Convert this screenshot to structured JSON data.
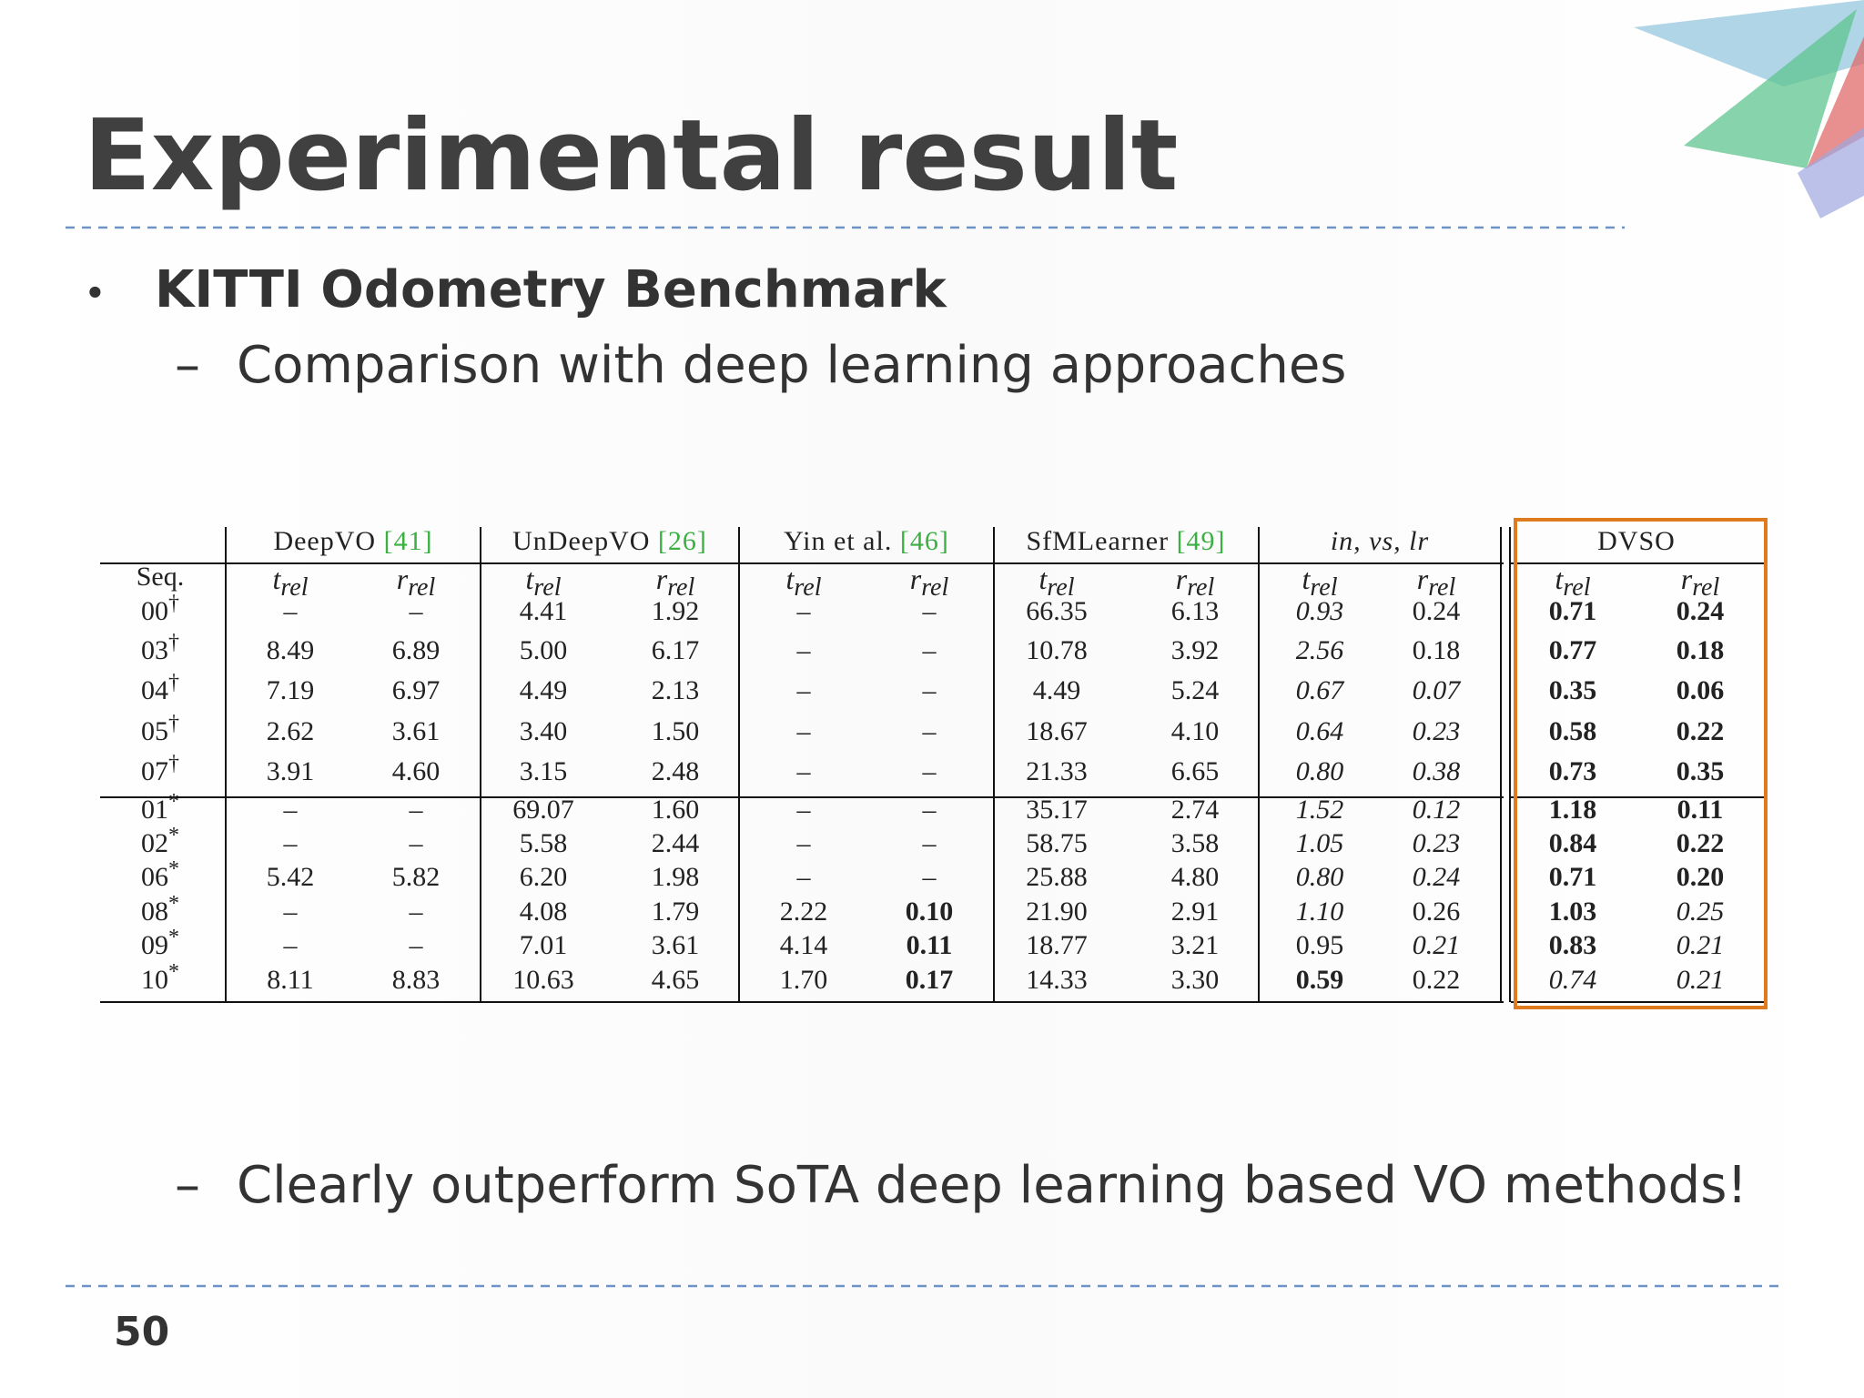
{
  "header": {
    "title": "Experimental result"
  },
  "bullets": [
    {
      "text": "KITTI Odometry Benchmark",
      "children": [
        {
          "text": "Comparison with deep learning approaches"
        }
      ]
    }
  ],
  "table": {
    "seq_header": "Seq.",
    "groups": [
      {
        "name": "DeepVO",
        "ref": "[41]"
      },
      {
        "name": "UnDeepVO",
        "ref": "[26]"
      },
      {
        "name": "Yin et al.",
        "ref": "[46]"
      },
      {
        "name": "SfMLearner",
        "ref": "[49]"
      },
      {
        "name": "in, vs, lr"
      },
      {
        "name": "DVSO"
      }
    ],
    "metrics": [
      {
        "symbol": "t",
        "subscript": "rel"
      },
      {
        "symbol": "r",
        "subscript": "rel"
      }
    ],
    "rows": [
      {
        "seq": "00",
        "mark": "†",
        "cells": [
          "–",
          "–",
          "4.41",
          "1.92",
          "–",
          "–",
          "66.35",
          "6.13",
          "0.93",
          "0.24",
          "0.71",
          "0.24"
        ]
      },
      {
        "seq": "03",
        "mark": "†",
        "cells": [
          "8.49",
          "6.89",
          "5.00",
          "6.17",
          "–",
          "–",
          "10.78",
          "3.92",
          "2.56",
          "0.18",
          "0.77",
          "0.18"
        ]
      },
      {
        "seq": "04",
        "mark": "†",
        "cells": [
          "7.19",
          "6.97",
          "4.49",
          "2.13",
          "–",
          "–",
          "4.49",
          "5.24",
          "0.67",
          "0.07",
          "0.35",
          "0.06"
        ]
      },
      {
        "seq": "05",
        "mark": "†",
        "cells": [
          "2.62",
          "3.61",
          "3.40",
          "1.50",
          "–",
          "–",
          "18.67",
          "4.10",
          "0.64",
          "0.23",
          "0.58",
          "0.22"
        ]
      },
      {
        "seq": "07",
        "mark": "†",
        "cells": [
          "3.91",
          "4.60",
          "3.15",
          "2.48",
          "–",
          "–",
          "21.33",
          "6.65",
          "0.80",
          "0.38",
          "0.73",
          "0.35"
        ]
      },
      {
        "seq": "01",
        "mark": "*",
        "cells": [
          "–",
          "–",
          "69.07",
          "1.60",
          "–",
          "–",
          "35.17",
          "2.74",
          "1.52",
          "0.12",
          "1.18",
          "0.11"
        ]
      },
      {
        "seq": "02",
        "mark": "*",
        "cells": [
          "–",
          "–",
          "5.58",
          "2.44",
          "–",
          "–",
          "58.75",
          "3.58",
          "1.05",
          "0.23",
          "0.84",
          "0.22"
        ]
      },
      {
        "seq": "06",
        "mark": "*",
        "cells": [
          "5.42",
          "5.82",
          "6.20",
          "1.98",
          "–",
          "–",
          "25.88",
          "4.80",
          "0.80",
          "0.24",
          "0.71",
          "0.20"
        ]
      },
      {
        "seq": "08",
        "mark": "*",
        "cells": [
          "–",
          "–",
          "4.08",
          "1.79",
          "2.22",
          "0.10",
          "21.90",
          "2.91",
          "1.10",
          "0.26",
          "1.03",
          "0.25"
        ]
      },
      {
        "seq": "09",
        "mark": "*",
        "cells": [
          "–",
          "–",
          "7.01",
          "3.61",
          "4.14",
          "0.11",
          "18.77",
          "3.21",
          "0.95",
          "0.21",
          "0.83",
          "0.21"
        ]
      },
      {
        "seq": "10",
        "mark": "*",
        "cells": [
          "8.11",
          "8.83",
          "10.63",
          "4.65",
          "1.70",
          "0.17",
          "14.33",
          "3.30",
          "0.59",
          "0.22",
          "0.74",
          "0.21"
        ]
      }
    ]
  },
  "conclusion": "Clearly outperform SoTA deep learning based VO methods!",
  "page_number": "50"
}
